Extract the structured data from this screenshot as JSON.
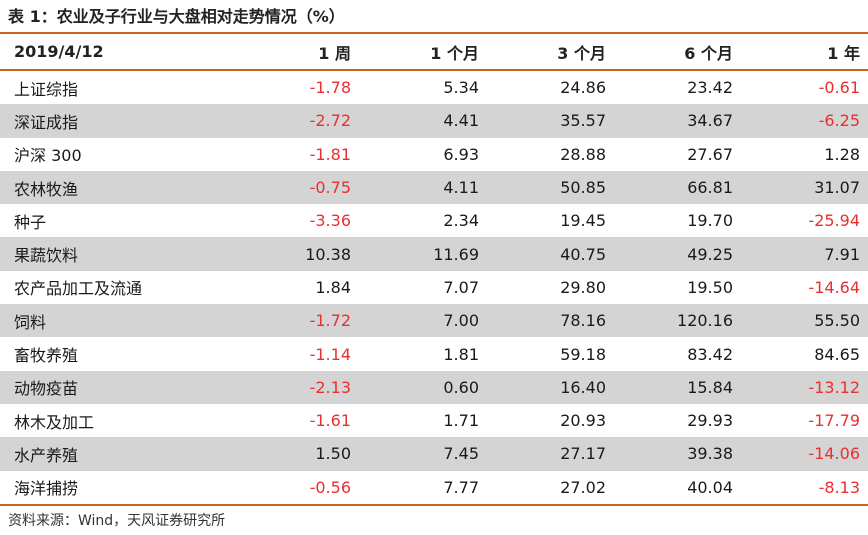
{
  "title": "表 1：农业及子行业与大盘相对走势情况（%）",
  "header": [
    "2019/4/12",
    "1 周",
    "1 个月",
    "3 个月",
    "6 个月",
    "1 年"
  ],
  "rows": [
    {
      "name": "上证综指",
      "values": [
        "-1.78",
        "5.34",
        "24.86",
        "23.42",
        "-0.61"
      ]
    },
    {
      "name": "深证成指",
      "values": [
        "-2.72",
        "4.41",
        "35.57",
        "34.67",
        "-6.25"
      ]
    },
    {
      "name": "沪深 300",
      "values": [
        "-1.81",
        "6.93",
        "28.88",
        "27.67",
        "1.28"
      ]
    },
    {
      "name": "农林牧渔",
      "values": [
        "-0.75",
        "4.11",
        "50.85",
        "66.81",
        "31.07"
      ]
    },
    {
      "name": "种子",
      "values": [
        "-3.36",
        "2.34",
        "19.45",
        "19.70",
        "-25.94"
      ]
    },
    {
      "name": "果蔬饮料",
      "values": [
        "10.38",
        "11.69",
        "40.75",
        "49.25",
        "7.91"
      ]
    },
    {
      "name": "农产品加工及流通",
      "values": [
        "1.84",
        "7.07",
        "29.80",
        "19.50",
        "-14.64"
      ]
    },
    {
      "name": "饲料",
      "values": [
        "-1.72",
        "7.00",
        "78.16",
        "120.16",
        "55.50"
      ]
    },
    {
      "name": "畜牧养殖",
      "values": [
        "-1.14",
        "1.81",
        "59.18",
        "83.42",
        "84.65"
      ]
    },
    {
      "name": "动物疫苗",
      "values": [
        "-2.13",
        "0.60",
        "16.40",
        "15.84",
        "-13.12"
      ]
    },
    {
      "name": "林木及加工",
      "values": [
        "-1.61",
        "1.71",
        "20.93",
        "29.93",
        "-17.79"
      ]
    },
    {
      "name": "水产养殖",
      "values": [
        "1.50",
        "7.45",
        "27.17",
        "39.38",
        "-14.06"
      ]
    },
    {
      "name": "海洋捕捞",
      "values": [
        "-0.56",
        "7.77",
        "27.02",
        "40.04",
        "-8.13"
      ]
    }
  ],
  "source": "资料来源：Wind，天风证券研究所",
  "colors": {
    "accent_rule": "#c9651f",
    "negative": "#e8302f",
    "shade": "#d4d4d4"
  }
}
